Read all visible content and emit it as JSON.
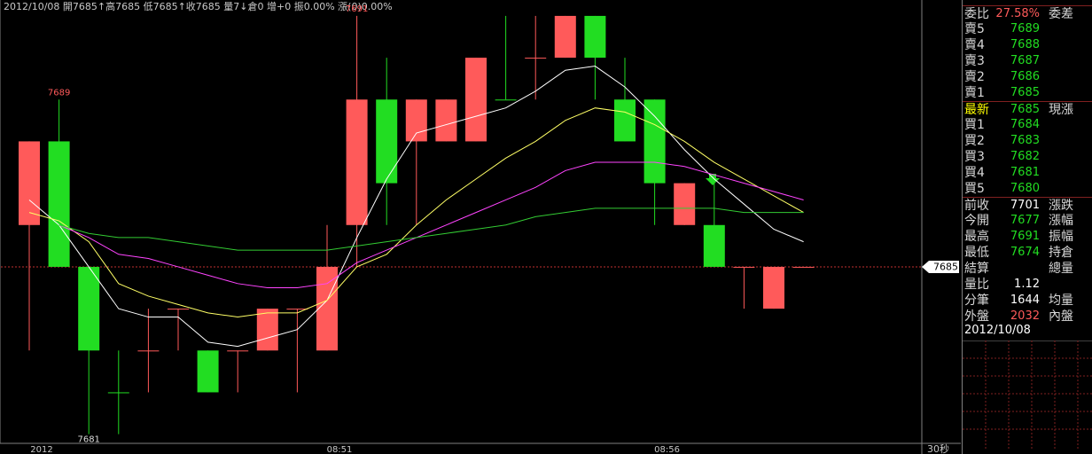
{
  "chart_data": {
    "type": "candlestick",
    "header": "2012/10/08 開7685↑高7685 低7685↑收7685 量7↓倉0 增+0 振0.00% 漲(0)0.00%",
    "categories": [
      "2012",
      null,
      null,
      null,
      null,
      null,
      null,
      null,
      null,
      null,
      "08:51",
      null,
      null,
      null,
      null,
      null,
      null,
      null,
      null,
      null,
      null,
      "08:56",
      null,
      null,
      null,
      null,
      null
    ],
    "period": "30秒",
    "open": [
      7686,
      7688,
      7685,
      7682,
      7683,
      7684,
      7683,
      7683,
      7683,
      7684,
      7683,
      7686,
      7689,
      7688,
      7688,
      7688,
      7689,
      7690,
      7690,
      7691,
      7689,
      7689,
      7686,
      7686,
      7685,
      7684,
      7685
    ],
    "high": [
      7688,
      7689,
      7685,
      7683,
      7684,
      7684,
      7683,
      7683,
      7684,
      7684,
      7686,
      7691,
      7690,
      7689,
      7689,
      7690,
      7691,
      7691,
      7691,
      7691,
      7690,
      7689,
      7687,
      7687,
      7685,
      7685,
      7685
    ],
    "low": [
      7683,
      7685,
      7681,
      7681,
      7682,
      7683,
      7682,
      7682,
      7683,
      7682,
      7683,
      7685,
      7686,
      7686,
      7688,
      7688,
      7689,
      7689,
      7690,
      7689,
      7688,
      7686,
      7686,
      7685,
      7684,
      7684,
      7685
    ],
    "close": [
      7688,
      7685,
      7683,
      7682,
      7683,
      7684,
      7682,
      7683,
      7684,
      7684,
      7685,
      7689,
      7687,
      7689,
      7689,
      7690,
      7689,
      7690,
      7691,
      7690,
      7688,
      7687,
      7687,
      7685,
      7685,
      7685,
      7685
    ],
    "up_color": "#ff5a5a",
    "down_color": "#22dd22",
    "lines": [
      {
        "color": "#ffffff",
        "values": [
          7686.6,
          7686.0,
          7685.0,
          7684.0,
          7683.8,
          7683.8,
          7683.2,
          7683.1,
          7683.3,
          7683.5,
          7684.2,
          7685.7,
          7687.1,
          7688.2,
          7688.4,
          7688.6,
          7688.8,
          7689.2,
          7689.7,
          7689.8,
          7689.3,
          7688.6,
          7687.8,
          7687.1,
          7686.5,
          7685.9,
          7685.6
        ]
      },
      {
        "color": "#ffff66",
        "values": [
          7686.3,
          7686.1,
          7685.6,
          7684.6,
          7684.3,
          7684.1,
          7683.9,
          7683.8,
          7683.9,
          7683.9,
          7684.2,
          7685.0,
          7685.3,
          7686.0,
          7686.6,
          7687.1,
          7687.6,
          7688.0,
          7688.5,
          7688.8,
          7688.7,
          7688.4,
          7688.0,
          7687.5,
          7687.1,
          7686.7,
          7686.3
        ]
      },
      {
        "color": "#ff44ff",
        "values": [
          null,
          7686.0,
          7685.7,
          7685.3,
          7685.2,
          7685.0,
          7684.8,
          7684.6,
          7684.5,
          7684.5,
          7684.6,
          7685.1,
          7685.4,
          7685.7,
          7686.0,
          7686.3,
          7686.6,
          7686.9,
          7687.3,
          7687.5,
          7687.5,
          7687.5,
          7687.4,
          7687.2,
          7687.0,
          7686.8,
          7686.6
        ]
      },
      {
        "color": "#33cc33",
        "values": [
          null,
          7686.0,
          7685.8,
          7685.7,
          7685.7,
          7685.6,
          7685.5,
          7685.4,
          7685.4,
          7685.4,
          7685.4,
          7685.5,
          7685.6,
          7685.7,
          7685.8,
          7685.9,
          7686.0,
          7686.2,
          7686.3,
          7686.4,
          7686.4,
          7686.4,
          7686.4,
          7686.4,
          7686.3,
          7686.3,
          7686.3
        ]
      }
    ],
    "annotations": [
      {
        "value": 7689,
        "at": "high"
      },
      {
        "value": 7691,
        "at": "high"
      },
      {
        "value": 7681,
        "at": "low"
      }
    ],
    "last_price": 7685,
    "ylim": [
      7680.78,
      7691.38
    ]
  },
  "panel": {
    "rows": [
      {
        "label": "委比",
        "value": "27.58%",
        "value_color": "#ff5a5a",
        "right": "委差"
      },
      {
        "label": "賣5",
        "value": "7689",
        "value_color": "#22dd22"
      },
      {
        "label": "賣4",
        "value": "7688",
        "value_color": "#22dd22"
      },
      {
        "label": "賣3",
        "value": "7687",
        "value_color": "#22dd22"
      },
      {
        "label": "賣2",
        "value": "7686",
        "value_color": "#22dd22"
      },
      {
        "label": "賣1",
        "value": "7685",
        "value_color": "#22dd22"
      },
      {
        "label": "最新",
        "label_color": "#ffff00",
        "value": "7685",
        "value_color": "#22dd22",
        "right": "現漲"
      },
      {
        "label": "買1",
        "value": "7684",
        "value_color": "#22dd22"
      },
      {
        "label": "買2",
        "value": "7683",
        "value_color": "#22dd22"
      },
      {
        "label": "買3",
        "value": "7682",
        "value_color": "#22dd22"
      },
      {
        "label": "買4",
        "value": "7681",
        "value_color": "#22dd22"
      },
      {
        "label": "買5",
        "value": "7680",
        "value_color": "#22dd22"
      },
      {
        "label": "前收",
        "value": "7701",
        "value_color": "#ffffff",
        "right": "漲跌"
      },
      {
        "label": "今開",
        "value": "7677",
        "value_color": "#22dd22",
        "right": "漲幅"
      },
      {
        "label": "最高",
        "value": "7691",
        "value_color": "#22dd22",
        "right": "振幅"
      },
      {
        "label": "最低",
        "value": "7674",
        "value_color": "#22dd22",
        "right": "持倉"
      },
      {
        "label": "結算",
        "right": "總量"
      },
      {
        "label": "量比",
        "value": "1.12",
        "value_color": "#ffffff"
      },
      {
        "label": "分筆",
        "value": "1644",
        "value_color": "#ffffff",
        "right": "均量"
      },
      {
        "label": "外盤",
        "value": "2032",
        "value_color": "#ff5a5a",
        "right": "內盤"
      }
    ],
    "date": "2012/10/08"
  }
}
